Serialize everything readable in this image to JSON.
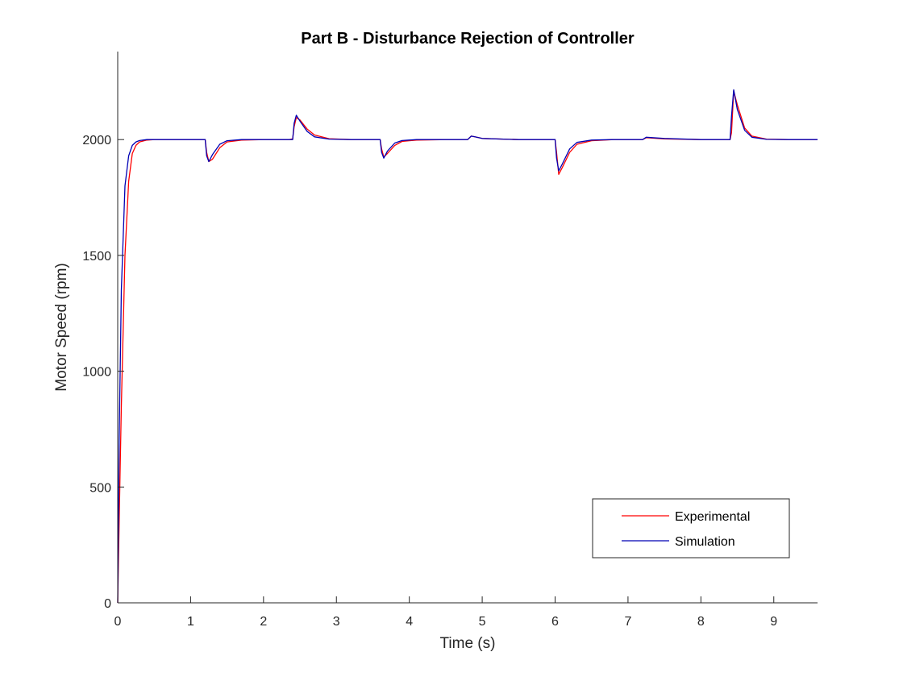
{
  "chart_data": {
    "type": "line",
    "title": "Part B - Disturbance Rejection of Controller",
    "xlabel": "Time (s)",
    "ylabel": "Motor Speed (rpm)",
    "xlim": [
      0,
      9.6
    ],
    "ylim": [
      0,
      2380
    ],
    "xticks": [
      0,
      1,
      2,
      3,
      4,
      5,
      6,
      7,
      8,
      9
    ],
    "xtick_labels": [
      "0",
      "1",
      "2",
      "3",
      "4",
      "5",
      "6",
      "7",
      "8",
      "9"
    ],
    "yticks": [
      0,
      500,
      1000,
      1500,
      2000
    ],
    "ytick_labels": [
      "0",
      "500",
      "1000",
      "1500",
      "2000"
    ],
    "grid": false,
    "legend": {
      "position": "bottom-right",
      "entries": [
        "Experimental",
        "Simulation"
      ]
    },
    "series": [
      {
        "name": "Experimental",
        "color": "#ff0000",
        "x": [
          0,
          0.02,
          0.05,
          0.1,
          0.15,
          0.2,
          0.25,
          0.3,
          0.4,
          0.5,
          1.0,
          1.2,
          1.22,
          1.25,
          1.3,
          1.4,
          1.5,
          1.7,
          2.0,
          2.35,
          2.4,
          2.42,
          2.45,
          2.5,
          2.6,
          2.7,
          2.9,
          3.2,
          3.6,
          3.62,
          3.65,
          3.7,
          3.8,
          3.9,
          4.1,
          4.5,
          4.8,
          4.85,
          4.9,
          5.0,
          5.5,
          6.0,
          6.02,
          6.05,
          6.1,
          6.2,
          6.3,
          6.5,
          6.8,
          7.2,
          7.25,
          7.5,
          8.0,
          8.4,
          8.42,
          8.45,
          8.5,
          8.6,
          8.7,
          8.9,
          9.2,
          9.6
        ],
        "y": [
          0,
          350,
          850,
          1500,
          1820,
          1940,
          1975,
          1990,
          1998,
          2000,
          2000,
          2000,
          1945,
          1905,
          1915,
          1965,
          1990,
          1998,
          2000,
          2000,
          2003,
          2055,
          2095,
          2085,
          2045,
          2020,
          2004,
          2000,
          2000,
          1960,
          1925,
          1940,
          1975,
          1992,
          1998,
          2000,
          2000,
          2015,
          2012,
          2005,
          2000,
          2000,
          1945,
          1850,
          1880,
          1945,
          1980,
          1995,
          2000,
          2000,
          2008,
          2003,
          2000,
          2000,
          2030,
          2210,
          2150,
          2050,
          2015,
          2002,
          2000,
          2000
        ]
      },
      {
        "name": "Simulation",
        "color": "#0000b4",
        "x": [
          0,
          0.02,
          0.05,
          0.1,
          0.15,
          0.2,
          0.25,
          0.3,
          0.4,
          0.5,
          1.0,
          1.2,
          1.22,
          1.25,
          1.3,
          1.4,
          1.5,
          1.7,
          2.0,
          2.35,
          2.4,
          2.42,
          2.45,
          2.5,
          2.6,
          2.7,
          2.9,
          3.2,
          3.6,
          3.62,
          3.65,
          3.7,
          3.8,
          3.9,
          4.1,
          4.5,
          4.8,
          4.85,
          4.9,
          5.0,
          5.5,
          6.0,
          6.02,
          6.05,
          6.1,
          6.2,
          6.3,
          6.5,
          6.8,
          7.2,
          7.25,
          7.5,
          8.0,
          8.4,
          8.42,
          8.45,
          8.5,
          8.6,
          8.7,
          8.9,
          9.2,
          9.6
        ],
        "y": [
          0,
          700,
          1350,
          1800,
          1930,
          1975,
          1990,
          1996,
          2000,
          2000,
          2000,
          2000,
          1930,
          1905,
          1935,
          1980,
          1995,
          2000,
          2000,
          2000,
          2000,
          2070,
          2105,
          2080,
          2035,
          2012,
          2002,
          2000,
          2000,
          1945,
          1920,
          1950,
          1985,
          1996,
          2000,
          2000,
          2000,
          2015,
          2012,
          2005,
          2000,
          2000,
          1920,
          1865,
          1895,
          1960,
          1988,
          1998,
          2000,
          2000,
          2010,
          2005,
          2000,
          2000,
          2100,
          2215,
          2130,
          2040,
          2010,
          2001,
          2000,
          2000
        ]
      }
    ]
  }
}
